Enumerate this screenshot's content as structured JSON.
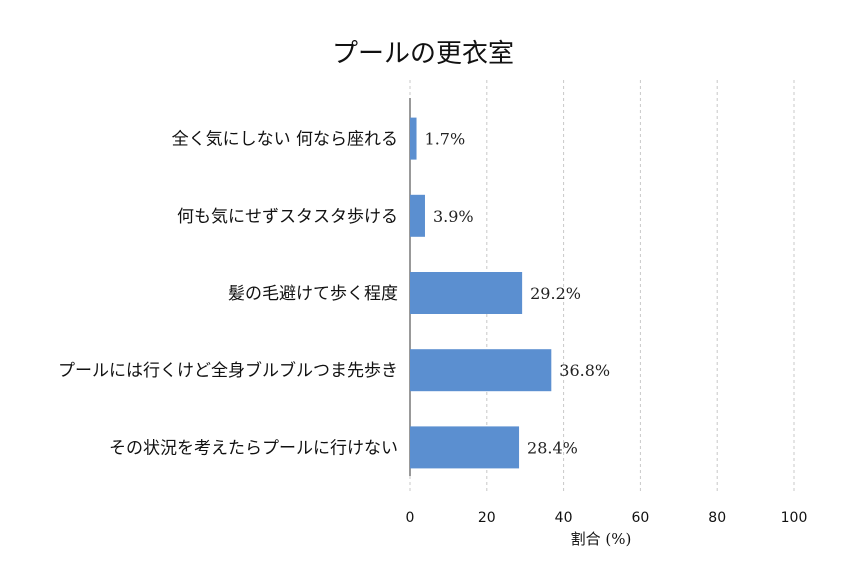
{
  "chart_data": {
    "type": "bar",
    "orientation": "horizontal",
    "title": "プールの更衣室",
    "xlabel": "割合 (%)",
    "ylabel": "",
    "xlim": [
      0,
      100
    ],
    "xticks": [
      0,
      20,
      40,
      60,
      80,
      100
    ],
    "grid": "vertical dashed",
    "bar_color": "#5b8fd0",
    "categories": [
      "全く気にしない 何なら座れる",
      "何も気にせずスタスタ歩ける",
      "髪の毛避けて歩く程度",
      "プールには行くけど全身ブルブルつま先歩き",
      "その状況を考えたらプールに行けない"
    ],
    "values": [
      1.7,
      3.9,
      29.2,
      36.8,
      28.4
    ],
    "value_labels": [
      "1.7%",
      "3.9%",
      "29.2%",
      "36.8%",
      "28.4%"
    ]
  }
}
